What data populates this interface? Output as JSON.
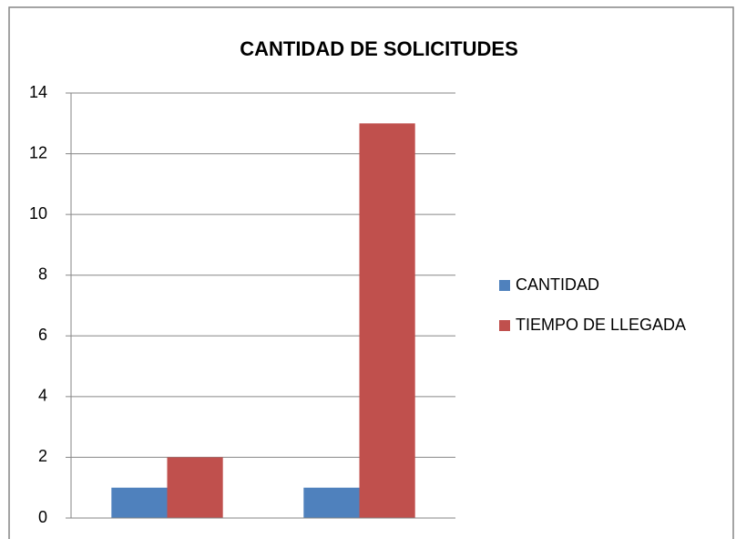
{
  "chart_data": {
    "type": "bar",
    "title": "CANTIDAD DE SOLICITUDES",
    "categories": [
      null,
      null
    ],
    "series": [
      {
        "name": "CANTIDAD",
        "color": "#4f81bd",
        "values": [
          1,
          1
        ]
      },
      {
        "name": "TIEMPO DE LLEGADA",
        "color": "#c0504d",
        "values": [
          2,
          13
        ]
      }
    ],
    "ylim": [
      0,
      14
    ],
    "yticks": [
      0,
      2,
      4,
      6,
      8,
      10,
      12,
      14
    ],
    "grid": true,
    "legend": "right"
  }
}
